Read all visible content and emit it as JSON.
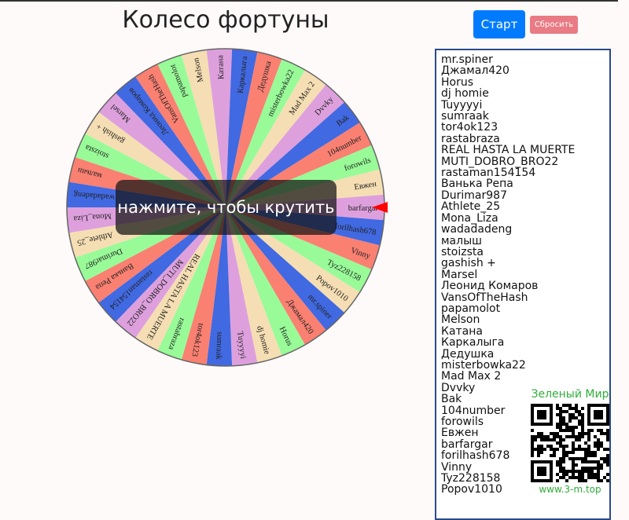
{
  "title": "Колесо фортуны",
  "buttons": {
    "start": "Старт",
    "reset": "Сбросить"
  },
  "overlay_text": "нажмите, чтобы крутить",
  "names": [
    "mr.spiner",
    "Джамал420",
    "Horus",
    "dj homie",
    "Tuyyyyi",
    "sumraak",
    "tor4ok123",
    "rastabraza",
    "REAL HASTA LA MUERTE",
    "MUTI_DOBRO_BRO22",
    "rastaman154154",
    "Ванька Репа",
    "Durimar987",
    "Athlete_25",
    "Mona_Liza",
    "wadadadeng",
    "малыш",
    "stoizsta",
    "gashish +",
    "Marsel",
    "Леонид Комаров",
    "VansOfTheHash",
    "papamolot",
    "Melson",
    "Катана",
    "Каркалыга",
    "Дедушка",
    "misterbowka22",
    "Mad Max 2",
    "Dvvky",
    "Bak",
    "104number",
    "forowils",
    "Евжен",
    "barfargar",
    "forilhash678",
    "Vinny",
    "Tyz228158",
    "Popov1010"
  ],
  "segment_colors": [
    "#4169e1",
    "#fa8072",
    "#98fb98",
    "#f5deb3",
    "#dda0dd"
  ],
  "pointer_color": "#ff0000",
  "selected_at_pointer": "barfargar",
  "ad": {
    "title": "Зеленый Мир",
    "url": "www.3-m.top",
    "icon": "qr-code-icon"
  }
}
